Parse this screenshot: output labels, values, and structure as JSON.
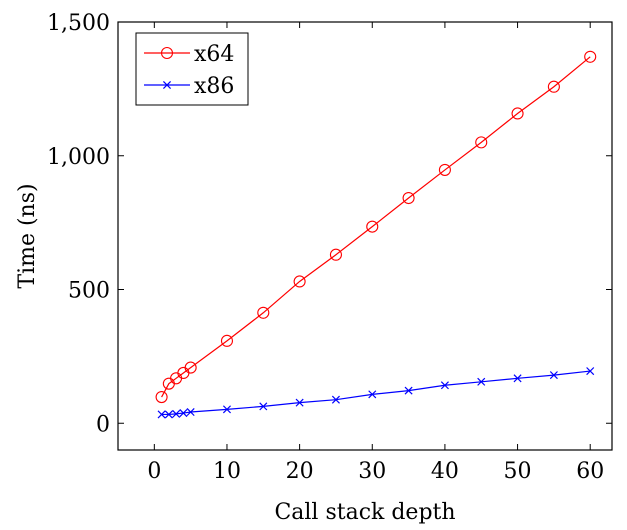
{
  "chart_data": {
    "type": "line",
    "title": "",
    "xlabel": "Call stack depth",
    "ylabel": "Time (ns)",
    "xlim": [
      -5,
      63
    ],
    "ylim": [
      -100,
      1500
    ],
    "x_ticks": [
      0,
      10,
      20,
      30,
      40,
      50,
      60
    ],
    "x_tick_labels": [
      "0",
      "10",
      "20",
      "30",
      "40",
      "50",
      "60"
    ],
    "y_ticks": [
      0,
      500,
      1000,
      1500
    ],
    "y_tick_labels": [
      "0",
      "500",
      "1,000",
      "1,500"
    ],
    "grid": false,
    "legend_position": "top-left",
    "series": [
      {
        "name": "x64",
        "color": "#ff0000",
        "marker": "circle",
        "x": [
          1,
          2,
          3,
          4,
          5,
          10,
          15,
          20,
          25,
          30,
          35,
          40,
          45,
          50,
          55,
          60
        ],
        "y": [
          98,
          148,
          168,
          188,
          208,
          308,
          413,
          530,
          630,
          735,
          842,
          947,
          1050,
          1158,
          1258,
          1370
        ]
      },
      {
        "name": "x86",
        "color": "#0000ff",
        "marker": "x",
        "x": [
          1,
          2,
          3,
          4,
          5,
          10,
          15,
          20,
          25,
          30,
          35,
          40,
          45,
          50,
          55,
          60
        ],
        "y": [
          33,
          33,
          35,
          38,
          42,
          52,
          63,
          77,
          88,
          108,
          122,
          142,
          155,
          168,
          180,
          195
        ]
      }
    ]
  }
}
